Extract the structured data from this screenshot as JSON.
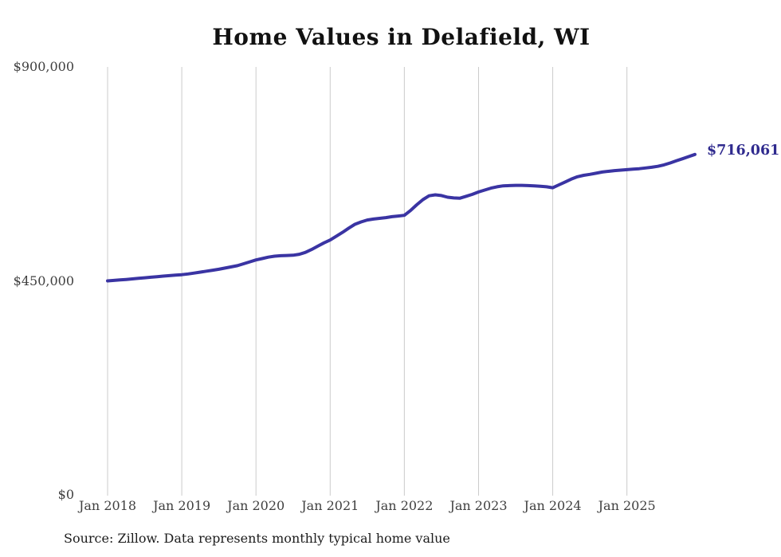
{
  "title": "Home Values in Delafield, WI",
  "source_note": "Source: Zillow. Data represents monthly typical home value",
  "end_label": "$716,061",
  "colors": {
    "line": "#3a34a3",
    "end_label": "#2f2a8e",
    "gridline": "#cbcbcb",
    "tick_text": "#3f3f3f",
    "title_text": "#111111",
    "source_text": "#1c1c1c",
    "background": "#ffffff"
  },
  "chart_data": {
    "type": "line",
    "series_name": "Monthly typical home value",
    "title": "Home Values in Delafield, WI",
    "xlabel": "",
    "ylabel": "",
    "ylim": [
      0,
      900000
    ],
    "grid": "vertical-only",
    "legend": "none",
    "x_interval": "month",
    "x": [
      "2018-01",
      "2018-02",
      "2018-03",
      "2018-04",
      "2018-05",
      "2018-06",
      "2018-07",
      "2018-08",
      "2018-09",
      "2018-10",
      "2018-11",
      "2018-12",
      "2019-01",
      "2019-02",
      "2019-03",
      "2019-04",
      "2019-05",
      "2019-06",
      "2019-07",
      "2019-08",
      "2019-09",
      "2019-10",
      "2019-11",
      "2019-12",
      "2020-01",
      "2020-02",
      "2020-03",
      "2020-04",
      "2020-05",
      "2020-06",
      "2020-07",
      "2020-08",
      "2020-09",
      "2020-10",
      "2020-11",
      "2020-12",
      "2021-01",
      "2021-02",
      "2021-03",
      "2021-04",
      "2021-05",
      "2021-06",
      "2021-07",
      "2021-08",
      "2021-09",
      "2021-10",
      "2021-11",
      "2021-12",
      "2022-01",
      "2022-02",
      "2022-03",
      "2022-04",
      "2022-05",
      "2022-06",
      "2022-07",
      "2022-08",
      "2022-09",
      "2022-10",
      "2022-11",
      "2022-12",
      "2023-01",
      "2023-02",
      "2023-03",
      "2023-04",
      "2023-05",
      "2023-06",
      "2023-07",
      "2023-08",
      "2023-09",
      "2023-10",
      "2023-11",
      "2023-12",
      "2024-01",
      "2024-02",
      "2024-03",
      "2024-04",
      "2024-05",
      "2024-06",
      "2024-07",
      "2024-08",
      "2024-09",
      "2024-10",
      "2024-11",
      "2024-12",
      "2025-01",
      "2025-02",
      "2025-03",
      "2025-04",
      "2025-05",
      "2025-06",
      "2025-07",
      "2025-08",
      "2025-09",
      "2025-10",
      "2025-11",
      "2025-12"
    ],
    "values": [
      450000,
      451000,
      452000,
      453000,
      454200,
      455400,
      456500,
      457700,
      458800,
      460000,
      461000,
      462000,
      463000,
      464500,
      466500,
      468500,
      470500,
      472500,
      474500,
      477000,
      479500,
      482000,
      486000,
      490000,
      494000,
      497000,
      500000,
      502000,
      503000,
      503500,
      504000,
      506000,
      510000,
      516000,
      523000,
      530000,
      536000,
      544000,
      552000,
      561000,
      569000,
      574000,
      578000,
      580000,
      581500,
      583000,
      585000,
      586500,
      588000,
      598000,
      610000,
      621000,
      629000,
      631000,
      629500,
      626000,
      624500,
      624000,
      628000,
      632000,
      637000,
      641000,
      645000,
      648000,
      650000,
      650500,
      651000,
      651000,
      650500,
      650000,
      649000,
      648000,
      646000,
      652000,
      658000,
      664000,
      669000,
      672000,
      674000,
      676500,
      679000,
      680500,
      682000,
      683000,
      684000,
      685000,
      686000,
      687500,
      689000,
      691000,
      694000,
      698000,
      702500,
      707000,
      711500,
      716061
    ],
    "last_value": 716061,
    "last_value_label": "$716,061",
    "yticks": [
      {
        "value": 0,
        "label": "$0"
      },
      {
        "value": 450000,
        "label": "$450,000"
      },
      {
        "value": 900000,
        "label": "$900,000"
      }
    ],
    "xticks": [
      {
        "index": 0,
        "label": "Jan 2018"
      },
      {
        "index": 12,
        "label": "Jan 2019"
      },
      {
        "index": 24,
        "label": "Jan 2020"
      },
      {
        "index": 36,
        "label": "Jan 2021"
      },
      {
        "index": 48,
        "label": "Jan 2022"
      },
      {
        "index": 60,
        "label": "Jan 2023"
      },
      {
        "index": 72,
        "label": "Jan 2024"
      },
      {
        "index": 84,
        "label": "Jan 2025"
      }
    ]
  }
}
